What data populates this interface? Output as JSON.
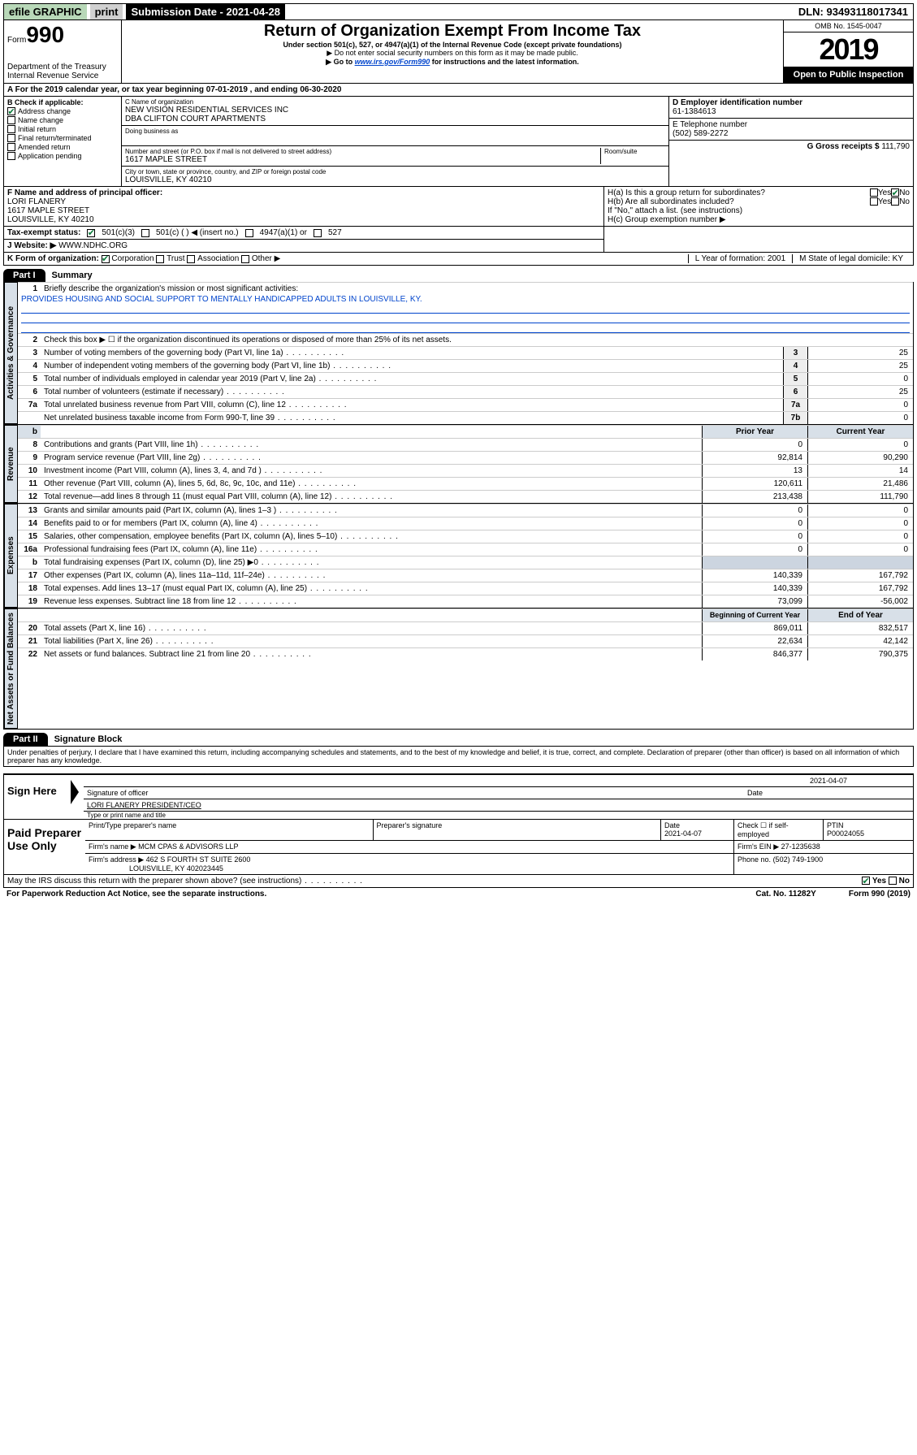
{
  "topbar": {
    "efile": "efile GRAPHIC",
    "print": "print",
    "submission": "Submission Date - 2021-04-28",
    "dln": "DLN: 93493118017341"
  },
  "header": {
    "form_prefix": "Form",
    "form_no": "990",
    "dept1": "Department of the Treasury",
    "dept2": "Internal Revenue Service",
    "title": "Return of Organization Exempt From Income Tax",
    "subtitle": "Under section 501(c), 527, or 4947(a)(1) of the Internal Revenue Code (except private foundations)",
    "note1": "▶ Do not enter social security numbers on this form as it may be made public.",
    "note2_a": "▶ Go to ",
    "note2_link": "www.irs.gov/Form990",
    "note2_b": " for instructions and the latest information.",
    "omb": "OMB No. 1545-0047",
    "year": "2019",
    "open": "Open to Public Inspection"
  },
  "rowA": "A For the 2019 calendar year, or tax year beginning 07-01-2019    , and ending 06-30-2020",
  "checkB": {
    "label": "B Check if applicable:",
    "items": [
      {
        "l": "Address change",
        "c": true
      },
      {
        "l": "Name change",
        "c": false
      },
      {
        "l": "Initial return",
        "c": false
      },
      {
        "l": "Final return/terminated",
        "c": false
      },
      {
        "l": "Amended return",
        "c": false
      },
      {
        "l": "Application pending",
        "c": false
      }
    ]
  },
  "orgC": {
    "label": "C Name of organization",
    "name1": "NEW VISION RESIDENTIAL SERVICES INC",
    "name2": "DBA CLIFTON COURT APARTMENTS",
    "dba_label": "Doing business as",
    "addr_label": "Number and street (or P.O. box if mail is not delivered to street address)",
    "room_label": "Room/suite",
    "addr": "1617 MAPLE STREET",
    "city_label": "City or town, state or province, country, and ZIP or foreign postal code",
    "city": "LOUISVILLE, KY  40210"
  },
  "colD": {
    "ein_label": "D Employer identification number",
    "ein": "61-1384613",
    "etel_label": "E Telephone number",
    "etel": "(502) 589-2272",
    "gross_label": "G Gross receipts $",
    "gross": "111,790"
  },
  "rowF": {
    "label": "F  Name and address of principal officer:",
    "name": "LORI FLANERY",
    "addr": "1617 MAPLE STREET",
    "city": "LOUISVILLE, KY  40210"
  },
  "rowH": {
    "ha": "H(a)  Is this a group return for subordinates?",
    "hb": "H(b)  Are all subordinates included?",
    "hb_note": "If \"No,\" attach a list. (see instructions)",
    "hc": "H(c)  Group exemption number ▶",
    "yes": "Yes",
    "no": "No"
  },
  "taxI": {
    "label": "Tax-exempt status:",
    "o1": "501(c)(3)",
    "o2": "501(c) (  ) ◀ (insert no.)",
    "o3": "4947(a)(1) or",
    "o4": "527"
  },
  "rowJ": {
    "label": "J   Website: ▶",
    "val": "WWW.NDHC.ORG"
  },
  "rowK": {
    "label": "K Form of organization:",
    "o1": "Corporation",
    "o2": "Trust",
    "o3": "Association",
    "o4": "Other ▶",
    "L": "L Year of formation: 2001",
    "M": "M State of legal domicile: KY"
  },
  "part1": {
    "tab": "Part I",
    "title": "Summary",
    "q1": "Briefly describe the organization's mission or most significant activities:",
    "mission": "PROVIDES HOUSING AND SOCIAL SUPPORT TO MENTALLY HANDICAPPED ADULTS IN LOUISVILLE, KY.",
    "q2": "Check this box ▶ ☐  if the organization discontinued its operations or disposed of more than 25% of its net assets.",
    "rows_gov": [
      {
        "n": "3",
        "t": "Number of voting members of the governing body (Part VI, line 1a)",
        "rn": "3",
        "v": "25"
      },
      {
        "n": "4",
        "t": "Number of independent voting members of the governing body (Part VI, line 1b)",
        "rn": "4",
        "v": "25"
      },
      {
        "n": "5",
        "t": "Total number of individuals employed in calendar year 2019 (Part V, line 2a)",
        "rn": "5",
        "v": "0"
      },
      {
        "n": "6",
        "t": "Total number of volunteers (estimate if necessary)",
        "rn": "6",
        "v": "25"
      },
      {
        "n": "7a",
        "t": "Total unrelated business revenue from Part VIII, column (C), line 12",
        "rn": "7a",
        "v": "0"
      },
      {
        "n": "",
        "t": "Net unrelated business taxable income from Form 990-T, line 39",
        "rn": "7b",
        "v": "0"
      }
    ],
    "hdr_prior": "Prior Year",
    "hdr_curr": "Current Year",
    "rows_rev": [
      {
        "n": "8",
        "t": "Contributions and grants (Part VIII, line 1h)",
        "p": "0",
        "c": "0"
      },
      {
        "n": "9",
        "t": "Program service revenue (Part VIII, line 2g)",
        "p": "92,814",
        "c": "90,290"
      },
      {
        "n": "10",
        "t": "Investment income (Part VIII, column (A), lines 3, 4, and 7d )",
        "p": "13",
        "c": "14"
      },
      {
        "n": "11",
        "t": "Other revenue (Part VIII, column (A), lines 5, 6d, 8c, 9c, 10c, and 11e)",
        "p": "120,611",
        "c": "21,486"
      },
      {
        "n": "12",
        "t": "Total revenue—add lines 8 through 11 (must equal Part VIII, column (A), line 12)",
        "p": "213,438",
        "c": "111,790"
      }
    ],
    "rows_exp": [
      {
        "n": "13",
        "t": "Grants and similar amounts paid (Part IX, column (A), lines 1–3 )",
        "p": "0",
        "c": "0"
      },
      {
        "n": "14",
        "t": "Benefits paid to or for members (Part IX, column (A), line 4)",
        "p": "0",
        "c": "0"
      },
      {
        "n": "15",
        "t": "Salaries, other compensation, employee benefits (Part IX, column (A), lines 5–10)",
        "p": "0",
        "c": "0"
      },
      {
        "n": "16a",
        "t": "Professional fundraising fees (Part IX, column (A), line 11e)",
        "p": "0",
        "c": "0"
      },
      {
        "n": "b",
        "t": "Total fundraising expenses (Part IX, column (D), line 25) ▶0",
        "p": "",
        "c": ""
      },
      {
        "n": "17",
        "t": "Other expenses (Part IX, column (A), lines 11a–11d, 11f–24e)",
        "p": "140,339",
        "c": "167,792"
      },
      {
        "n": "18",
        "t": "Total expenses. Add lines 13–17 (must equal Part IX, column (A), line 25)",
        "p": "140,339",
        "c": "167,792"
      },
      {
        "n": "19",
        "t": "Revenue less expenses. Subtract line 18 from line 12",
        "p": "73,099",
        "c": "-56,002"
      }
    ],
    "hdr_beg": "Beginning of Current Year",
    "hdr_end": "End of Year",
    "rows_net": [
      {
        "n": "20",
        "t": "Total assets (Part X, line 16)",
        "p": "869,011",
        "c": "832,517"
      },
      {
        "n": "21",
        "t": "Total liabilities (Part X, line 26)",
        "p": "22,634",
        "c": "42,142"
      },
      {
        "n": "22",
        "t": "Net assets or fund balances. Subtract line 21 from line 20",
        "p": "846,377",
        "c": "790,375"
      }
    ],
    "label_gov": "Activities & Governance",
    "label_rev": "Revenue",
    "label_exp": "Expenses",
    "label_net": "Net Assets or Fund Balances"
  },
  "part2": {
    "tab": "Part II",
    "title": "Signature Block",
    "decl": "Under penalties of perjury, I declare that I have examined this return, including accompanying schedules and statements, and to the best of my knowledge and belief, it is true, correct, and complete. Declaration of preparer (other than officer) is based on all information of which preparer has any knowledge.",
    "sign_here": "Sign Here",
    "sig_officer": "Signature of officer",
    "date": "2021-04-07",
    "date_l": "Date",
    "name_title": "LORI FLANERY  PRESIDENT/CEO",
    "type_l": "Type or print name and title",
    "paid": "Paid Preparer Use Only",
    "p_name_l": "Print/Type preparer's name",
    "p_sig_l": "Preparer's signature",
    "p_date_l": "Date",
    "p_date": "2021-04-07",
    "p_check_l": "Check ☐ if self-employed",
    "ptin_l": "PTIN",
    "ptin": "P00024055",
    "firm_name_l": "Firm's name     ▶",
    "firm_name": "MCM CPAS & ADVISORS LLP",
    "firm_ein_l": "Firm's EIN ▶",
    "firm_ein": "27-1235638",
    "firm_addr_l": "Firm's address ▶",
    "firm_addr1": "462 S FOURTH ST SUITE 2600",
    "firm_addr2": "LOUISVILLE, KY  402023445",
    "phone_l": "Phone no.",
    "phone": "(502) 749-1900",
    "discuss": "May the IRS discuss this return with the preparer shown above? (see instructions)"
  },
  "footer": {
    "pra": "For Paperwork Reduction Act Notice, see the separate instructions.",
    "cat": "Cat. No. 11282Y",
    "form": "Form 990 (2019)"
  }
}
